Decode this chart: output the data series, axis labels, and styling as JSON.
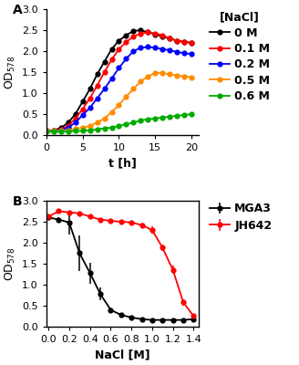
{
  "panel_A": {
    "title_label": "A",
    "xlabel": "t [h]",
    "ylabel": "OD$_{578}$",
    "xlim": [
      0,
      21
    ],
    "ylim": [
      0,
      3.0
    ],
    "xticks": [
      0,
      5,
      10,
      15,
      20
    ],
    "yticks": [
      0.0,
      0.5,
      1.0,
      1.5,
      2.0,
      2.5,
      3.0
    ],
    "legend_title": "[NaCl]",
    "series": [
      {
        "label": "0 M",
        "color": "#000000",
        "t": [
          0,
          1,
          2,
          3,
          4,
          5,
          6,
          7,
          8,
          9,
          10,
          11,
          12,
          13,
          14,
          15,
          16,
          17,
          18,
          19,
          20
        ],
        "od": [
          0.1,
          0.12,
          0.17,
          0.3,
          0.5,
          0.8,
          1.1,
          1.45,
          1.75,
          2.05,
          2.25,
          2.38,
          2.48,
          2.5,
          2.45,
          2.4,
          2.35,
          2.3,
          2.25,
          2.22,
          2.2
        ]
      },
      {
        "label": "0.1 M",
        "color": "#ff0000",
        "t": [
          0,
          1,
          2,
          3,
          4,
          5,
          6,
          7,
          8,
          9,
          10,
          11,
          12,
          13,
          14,
          15,
          16,
          17,
          18,
          19,
          20
        ],
        "od": [
          0.1,
          0.11,
          0.14,
          0.22,
          0.4,
          0.62,
          0.88,
          1.18,
          1.5,
          1.8,
          2.05,
          2.22,
          2.35,
          2.42,
          2.45,
          2.42,
          2.38,
          2.3,
          2.25,
          2.22,
          2.2
        ]
      },
      {
        "label": "0.2 M",
        "color": "#0000ff",
        "t": [
          0,
          1,
          2,
          3,
          4,
          5,
          6,
          7,
          8,
          9,
          10,
          11,
          12,
          13,
          14,
          15,
          16,
          17,
          18,
          19,
          20
        ],
        "od": [
          0.1,
          0.1,
          0.12,
          0.18,
          0.3,
          0.48,
          0.65,
          0.88,
          1.1,
          1.35,
          1.6,
          1.82,
          2.0,
          2.08,
          2.1,
          2.08,
          2.05,
          2.02,
          1.98,
          1.95,
          1.93
        ]
      },
      {
        "label": "0.5 M",
        "color": "#ff8c00",
        "t": [
          0,
          1,
          2,
          3,
          4,
          5,
          6,
          7,
          8,
          9,
          10,
          11,
          12,
          13,
          14,
          15,
          16,
          17,
          18,
          19,
          20
        ],
        "od": [
          0.1,
          0.1,
          0.1,
          0.12,
          0.15,
          0.18,
          0.22,
          0.3,
          0.4,
          0.55,
          0.72,
          0.92,
          1.1,
          1.28,
          1.4,
          1.48,
          1.48,
          1.45,
          1.42,
          1.4,
          1.38
        ]
      },
      {
        "label": "0.6 M",
        "color": "#00aa00",
        "t": [
          0,
          1,
          2,
          3,
          4,
          5,
          6,
          7,
          8,
          9,
          10,
          11,
          12,
          13,
          14,
          15,
          16,
          17,
          18,
          19,
          20
        ],
        "od": [
          0.08,
          0.08,
          0.08,
          0.09,
          0.1,
          0.1,
          0.12,
          0.14,
          0.16,
          0.18,
          0.22,
          0.26,
          0.3,
          0.35,
          0.38,
          0.4,
          0.42,
          0.44,
          0.46,
          0.48,
          0.5
        ]
      }
    ]
  },
  "panel_B": {
    "title_label": "B",
    "xlabel": "NaCl [M]",
    "ylabel": "OD$_{578}$",
    "xlim": [
      -0.02,
      1.45
    ],
    "ylim": [
      0,
      3.0
    ],
    "xticks": [
      0.0,
      0.2,
      0.4,
      0.6,
      0.8,
      1.0,
      1.2,
      1.4
    ],
    "yticks": [
      0.0,
      0.5,
      1.0,
      1.5,
      2.0,
      2.5,
      3.0
    ],
    "series": [
      {
        "label": "MGA3",
        "color": "#000000",
        "x": [
          0.0,
          0.1,
          0.2,
          0.3,
          0.4,
          0.5,
          0.6,
          0.7,
          0.8,
          0.9,
          1.0,
          1.1,
          1.2,
          1.3,
          1.4
        ],
        "y": [
          2.6,
          2.55,
          2.48,
          1.75,
          1.28,
          0.78,
          0.4,
          0.28,
          0.22,
          0.18,
          0.16,
          0.16,
          0.16,
          0.16,
          0.18
        ],
        "yerr": [
          0.05,
          0.05,
          0.28,
          0.42,
          0.25,
          0.16,
          0.05,
          0.04,
          0.03,
          0.02,
          0.02,
          0.02,
          0.02,
          0.02,
          0.02
        ]
      },
      {
        "label": "JH642",
        "color": "#ff0000",
        "x": [
          0.0,
          0.1,
          0.2,
          0.3,
          0.4,
          0.5,
          0.6,
          0.7,
          0.8,
          0.9,
          1.0,
          1.1,
          1.2,
          1.3,
          1.4
        ],
        "y": [
          2.62,
          2.75,
          2.72,
          2.7,
          2.62,
          2.55,
          2.52,
          2.5,
          2.48,
          2.42,
          2.3,
          1.88,
          1.35,
          0.58,
          0.25
        ],
        "yerr": [
          0.04,
          0.04,
          0.04,
          0.04,
          0.04,
          0.04,
          0.05,
          0.05,
          0.05,
          0.06,
          0.08,
          0.08,
          0.1,
          0.08,
          0.04
        ]
      }
    ]
  },
  "figure_bg": "#ffffff",
  "font_size": 9,
  "marker_size": 4.5,
  "line_width": 1.3
}
